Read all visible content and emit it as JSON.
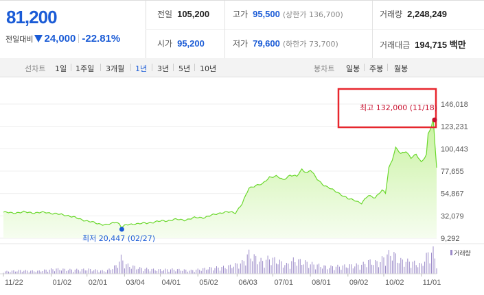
{
  "quote": {
    "price": "81,200",
    "change_label": "전일대비",
    "change": "24,000",
    "change_pct": "-22.81%",
    "prev_close_label": "전일",
    "prev_close": "105,200",
    "open_label": "시가",
    "open": "95,200",
    "high_label": "고가",
    "high": "95,500",
    "upper_limit": "(상한가 136,700)",
    "low_label": "저가",
    "low": "79,600",
    "lower_limit": "(하한가 73,700)",
    "volume_label": "거래량",
    "volume": "2,248,249",
    "value_label": "거래대금",
    "value": "194,715 백만"
  },
  "toolbar": {
    "line_label": "선차트",
    "line_periods": [
      "1일",
      "1주일",
      "3개월",
      "1년",
      "3년",
      "5년",
      "10년"
    ],
    "selected_period": "1년",
    "candle_label": "봉차트",
    "candle_periods": [
      "일봉",
      "주봉",
      "월봉"
    ]
  },
  "chart_data": {
    "type": "area",
    "y_ticks": [
      "146,018",
      "123,231",
      "100,443",
      "77,655",
      "54,867",
      "32,079",
      "9,292"
    ],
    "ylim": [
      9292,
      146018
    ],
    "x_ticks": [
      "11/22",
      "01/02",
      "02/01",
      "03/04",
      "04/01",
      "05/02",
      "06/03",
      "07/01",
      "08/01",
      "09/02",
      "10/02",
      "11/01"
    ],
    "x_tick_index": [
      0,
      28,
      49,
      71,
      92,
      114,
      137,
      158,
      180,
      202,
      223,
      245
    ],
    "n_points": 254,
    "price_anchors": [
      [
        0,
        35800
      ],
      [
        5,
        35000
      ],
      [
        12,
        35900
      ],
      [
        18,
        35200
      ],
      [
        25,
        35600
      ],
      [
        32,
        33800
      ],
      [
        38,
        32400
      ],
      [
        45,
        28700
      ],
      [
        50,
        26500
      ],
      [
        55,
        24300
      ],
      [
        60,
        22900
      ],
      [
        63,
        23800
      ],
      [
        66,
        26000
      ],
      [
        68,
        23900
      ],
      [
        69,
        20447
      ],
      [
        72,
        22600
      ],
      [
        78,
        24200
      ],
      [
        84,
        24500
      ],
      [
        90,
        26400
      ],
      [
        96,
        27000
      ],
      [
        100,
        28500
      ],
      [
        106,
        27800
      ],
      [
        112,
        30100
      ],
      [
        118,
        30500
      ],
      [
        124,
        33600
      ],
      [
        128,
        35500
      ],
      [
        132,
        35900
      ],
      [
        136,
        35200
      ],
      [
        140,
        44600
      ],
      [
        144,
        60200
      ],
      [
        148,
        63300
      ],
      [
        152,
        64400
      ],
      [
        156,
        71600
      ],
      [
        160,
        72600
      ],
      [
        164,
        68500
      ],
      [
        168,
        73800
      ],
      [
        172,
        72100
      ],
      [
        175,
        79500
      ],
      [
        178,
        75800
      ],
      [
        180,
        78800
      ],
      [
        184,
        69300
      ],
      [
        188,
        63300
      ],
      [
        192,
        59400
      ],
      [
        196,
        56100
      ],
      [
        198,
        53700
      ],
      [
        202,
        49400
      ],
      [
        206,
        48200
      ],
      [
        210,
        44700
      ],
      [
        214,
        52900
      ],
      [
        218,
        50800
      ],
      [
        222,
        57800
      ],
      [
        224,
        55300
      ],
      [
        226,
        81200
      ],
      [
        228,
        89600
      ],
      [
        230,
        101300
      ],
      [
        233,
        95200
      ],
      [
        236,
        98100
      ],
      [
        239,
        91300
      ],
      [
        242,
        94400
      ],
      [
        245,
        86800
      ],
      [
        248,
        94700
      ],
      [
        249,
        115500
      ],
      [
        251,
        123200
      ],
      [
        252,
        132000
      ],
      [
        253,
        105200
      ],
      [
        254,
        81200
      ]
    ],
    "volume": [
      [
        0,
        0.1
      ],
      [
        10,
        0.15
      ],
      [
        20,
        0.12
      ],
      [
        30,
        0.22
      ],
      [
        40,
        0.18
      ],
      [
        50,
        0.2
      ],
      [
        60,
        0.12
      ],
      [
        66,
        0.35
      ],
      [
        69,
        0.7
      ],
      [
        72,
        0.4
      ],
      [
        80,
        0.25
      ],
      [
        90,
        0.18
      ],
      [
        100,
        0.2
      ],
      [
        110,
        0.15
      ],
      [
        120,
        0.25
      ],
      [
        130,
        0.3
      ],
      [
        136,
        0.4
      ],
      [
        140,
        0.5
      ],
      [
        144,
        0.9
      ],
      [
        148,
        0.7
      ],
      [
        152,
        0.55
      ],
      [
        156,
        0.7
      ],
      [
        160,
        0.6
      ],
      [
        166,
        0.4
      ],
      [
        170,
        0.6
      ],
      [
        175,
        0.55
      ],
      [
        180,
        0.45
      ],
      [
        190,
        0.3
      ],
      [
        200,
        0.35
      ],
      [
        210,
        0.4
      ],
      [
        214,
        0.55
      ],
      [
        220,
        0.5
      ],
      [
        224,
        0.8
      ],
      [
        228,
        0.95
      ],
      [
        232,
        0.6
      ],
      [
        238,
        0.55
      ],
      [
        245,
        0.4
      ],
      [
        249,
        0.9
      ],
      [
        252,
        1.0
      ],
      [
        254,
        0.45
      ]
    ],
    "max_label": "최고 132,000 (11/18)",
    "max_index": 252,
    "max_value": 132000,
    "min_label": "최저 20,447 (02/27)",
    "min_index": 69,
    "min_value": 20447,
    "volume_label": "거래량",
    "colors": {
      "line": "#6ad82c",
      "fill_top": "#c8f29f",
      "fill_bottom": "#f6fdf0",
      "volume": "#9b8ac8",
      "max": "#c8102e",
      "min": "#1a5bd6",
      "highlight": "#e8262d"
    }
  }
}
